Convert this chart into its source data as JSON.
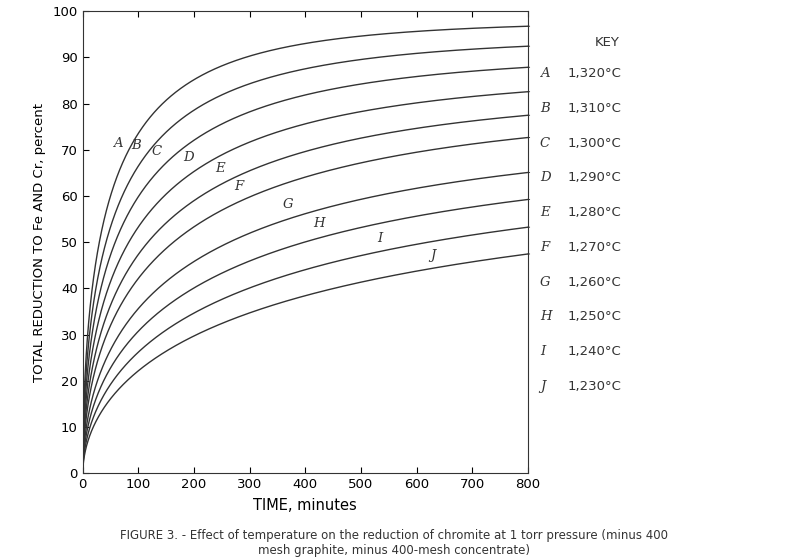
{
  "title": "FIGURE 3. - Effect of temperature on the reduction of chromite at 1 torr pressure (minus 400\nmesh graphite, minus 400-mesh concentrate)",
  "xlabel": "TIME, minutes",
  "ylabel": "TOTAL REDUCTION TO Fe AND Cr, percent",
  "xlim": [
    0,
    800
  ],
  "ylim": [
    0,
    100
  ],
  "xticks": [
    0,
    100,
    200,
    300,
    400,
    500,
    600,
    700,
    800
  ],
  "yticks": [
    0,
    10,
    20,
    30,
    40,
    50,
    60,
    70,
    80,
    90,
    100
  ],
  "curves": [
    {
      "label": "A",
      "temp": "1,320°C",
      "y_max": 98.0,
      "tau": 55,
      "n": 0.55
    },
    {
      "label": "B",
      "temp": "1,310°C",
      "y_max": 94.5,
      "tau": 70,
      "n": 0.55
    },
    {
      "label": "C",
      "temp": "1,300°C",
      "y_max": 91.0,
      "tau": 88,
      "n": 0.55
    },
    {
      "label": "D",
      "temp": "1,290°C",
      "y_max": 87.0,
      "tau": 110,
      "n": 0.55
    },
    {
      "label": "E",
      "temp": "1,280°C",
      "y_max": 83.5,
      "tau": 138,
      "n": 0.55
    },
    {
      "label": "F",
      "temp": "1,270°C",
      "y_max": 80.5,
      "tau": 172,
      "n": 0.55
    },
    {
      "label": "G",
      "temp": "1,260°C",
      "y_max": 75.0,
      "tau": 222,
      "n": 0.55
    },
    {
      "label": "H",
      "temp": "1,250°C",
      "y_max": 71.5,
      "tau": 285,
      "n": 0.55
    },
    {
      "label": "I",
      "temp": "1,240°C",
      "y_max": 68.0,
      "tau": 370,
      "n": 0.55
    },
    {
      "label": "J",
      "temp": "1,230°C",
      "y_max": 65.0,
      "tau": 490,
      "n": 0.55
    }
  ],
  "curve_label_positions": [
    {
      "label": "A",
      "t": 78
    },
    {
      "label": "B",
      "t": 110
    },
    {
      "label": "C",
      "t": 148
    },
    {
      "label": "D",
      "t": 205
    },
    {
      "label": "E",
      "t": 262
    },
    {
      "label": "F",
      "t": 295
    },
    {
      "label": "G",
      "t": 385
    },
    {
      "label": "H",
      "t": 440
    },
    {
      "label": "I",
      "t": 545
    },
    {
      "label": "J",
      "t": 640
    }
  ],
  "line_color": "#333333",
  "background_color": "#ffffff"
}
